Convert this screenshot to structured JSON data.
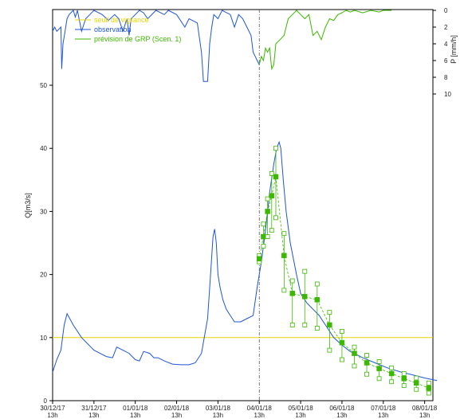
{
  "chart_data": {
    "type": "line",
    "ylabel": "Q[m3/s]",
    "y2label": "P [mm/h]",
    "ylim": [
      0,
      62
    ],
    "y_ticks": [
      "0",
      "10",
      "20",
      "30",
      "40",
      "50"
    ],
    "y2_ticks": [
      "0",
      "2",
      "4",
      "6",
      "8",
      "10"
    ],
    "y2lim": [
      0,
      10
    ],
    "xlim": [
      0,
      9.2
    ],
    "x_ticks": [
      {
        "date": "30/12/17",
        "hour": "13h",
        "x": 0
      },
      {
        "date": "31/12/17",
        "hour": "13h",
        "x": 1
      },
      {
        "date": "01/01/18",
        "hour": "13h",
        "x": 2
      },
      {
        "date": "02/01/18",
        "hour": "13h",
        "x": 3
      },
      {
        "date": "03/01/18",
        "hour": "13h",
        "x": 4
      },
      {
        "date": "04/01/18",
        "hour": "13h",
        "x": 5
      },
      {
        "date": "05/01/18",
        "hour": "13h",
        "x": 6
      },
      {
        "date": "06/01/18",
        "hour": "13h",
        "x": 7
      },
      {
        "date": "07/01/18",
        "hour": "13h",
        "x": 8
      },
      {
        "date": "08/01/18",
        "hour": "13h",
        "x": 9
      }
    ],
    "forecast_time": 5.0,
    "legend": {
      "position": "top-left",
      "threshold_label": "seuil de vigilance",
      "observation_label": "observation",
      "forecast_label": "prévision de GRP (Scen. 1)"
    },
    "threshold": {
      "value": 10,
      "color": "#e8d400"
    },
    "observation": {
      "color": "#1f55d8",
      "x": [
        0,
        0.1,
        0.2,
        0.28,
        0.35,
        0.5,
        0.7,
        1.0,
        1.3,
        1.45,
        1.55,
        1.7,
        1.85,
        2.0,
        2.1,
        2.2,
        2.35,
        2.45,
        2.55,
        2.7,
        2.9,
        3.1,
        3.3,
        3.45,
        3.6,
        3.75,
        3.82,
        3.88,
        3.92,
        3.96,
        4.0,
        4.05,
        4.12,
        4.2,
        4.3,
        4.4,
        4.55,
        4.7,
        4.85,
        4.95,
        5.05,
        5.15,
        5.25,
        5.35,
        5.42,
        5.48,
        5.52,
        5.58,
        5.65,
        5.75,
        5.9,
        6.0,
        6.15,
        6.3,
        6.45,
        6.6,
        6.8,
        7.0,
        7.2,
        7.5,
        7.8,
        8.1,
        8.4,
        8.7,
        9.0,
        9.3
      ],
      "y": [
        4.5,
        6.5,
        8,
        12,
        13.8,
        12,
        10,
        8,
        7,
        6.8,
        8.5,
        8,
        7.5,
        6.5,
        6.3,
        7.8,
        7.5,
        6.8,
        6.8,
        6.3,
        5.8,
        5.7,
        5.7,
        6,
        7.5,
        13,
        20,
        26,
        27.2,
        25,
        20,
        18,
        16,
        14.5,
        13.5,
        12.5,
        12.5,
        13,
        13.5,
        18,
        22,
        27,
        33,
        37.5,
        40,
        41,
        40,
        35,
        30,
        25,
        20,
        17,
        15.5,
        14.5,
        13.5,
        12,
        10,
        8.8,
        7.8,
        6.8,
        6,
        5.2,
        4.6,
        4.1,
        3.6,
        3.2
      ]
    },
    "forecast": {
      "color": "#3cb800",
      "x": [
        5.0,
        5.1,
        5.2,
        5.3,
        5.4,
        5.6,
        5.8,
        6.1,
        6.4,
        6.7,
        7.0,
        7.3,
        7.6,
        7.9,
        8.2,
        8.5,
        8.8,
        9.1
      ],
      "y": [
        22.5,
        26,
        30,
        32.5,
        35.5,
        23,
        17,
        16.5,
        16,
        12,
        9.2,
        7.5,
        6,
        5.1,
        4.3,
        3.5,
        2.8,
        2.0
      ],
      "lower": [
        22,
        24.5,
        26,
        27,
        29,
        17.5,
        12,
        12,
        11.5,
        8,
        6.5,
        5.5,
        4.2,
        3.5,
        3,
        2.4,
        1.8,
        1.2
      ],
      "upper": [
        23,
        28,
        32,
        36,
        40,
        26.5,
        19,
        20.5,
        18.5,
        14,
        11,
        8.5,
        7.2,
        6.2,
        5.2,
        4.3,
        3.6,
        2.8
      ]
    },
    "rain_observed": {
      "color": "#1f55d8",
      "x": [
        0,
        0.05,
        0.1,
        0.2,
        0.22,
        0.25,
        0.3,
        0.35,
        0.4,
        0.5,
        0.55,
        0.6,
        0.7,
        0.8,
        0.9,
        1.0,
        1.2,
        1.35,
        1.5,
        1.6,
        1.7,
        1.8,
        1.85,
        1.9,
        2.0,
        2.1,
        2.2,
        2.3,
        2.5,
        2.7,
        2.8,
        3.0,
        3.2,
        3.3,
        3.5,
        3.6,
        3.65,
        3.7,
        3.75,
        3.8,
        3.85,
        3.9,
        4.0,
        4.1,
        4.3,
        4.4,
        4.5,
        4.6,
        4.7,
        4.8,
        4.85,
        4.9,
        4.95,
        5.0
      ],
      "y": [
        2.5,
        2,
        2.5,
        2,
        7,
        4,
        2.5,
        1,
        0.5,
        0,
        0.8,
        0,
        2.5,
        1,
        0.5,
        0,
        0.5,
        1.2,
        0.5,
        1,
        2.5,
        1,
        3,
        1,
        0.5,
        0,
        0.3,
        1,
        0,
        0.5,
        0,
        0.5,
        2,
        1,
        1.5,
        5,
        8.5,
        8.5,
        8.5,
        4,
        2,
        0.5,
        1,
        0,
        0.5,
        2,
        0.5,
        1,
        2,
        3,
        5,
        5.5,
        6,
        6.5
      ]
    },
    "rain_forecast": {
      "color": "#3cb800",
      "x": [
        5.0,
        5.05,
        5.1,
        5.15,
        5.2,
        5.25,
        5.3,
        5.35,
        5.4,
        5.5,
        5.6,
        5.7,
        5.8,
        5.9,
        6.0,
        6.1,
        6.2,
        6.3,
        6.4,
        6.5,
        6.6,
        6.7,
        6.8,
        6.9,
        7.0,
        7.1,
        7.2,
        7.3,
        7.5,
        7.7,
        7.9,
        8.0,
        8.1,
        8.2
      ],
      "y": [
        6.5,
        5.5,
        6,
        4.5,
        5,
        4.5,
        7,
        6.5,
        4,
        3.5,
        3,
        1,
        0.5,
        0,
        0.5,
        1,
        0.5,
        3,
        2.5,
        3.5,
        2,
        1,
        1.2,
        0.5,
        0.3,
        0,
        0.2,
        0,
        0.3,
        0,
        0.2,
        0,
        0,
        0
      ]
    }
  }
}
